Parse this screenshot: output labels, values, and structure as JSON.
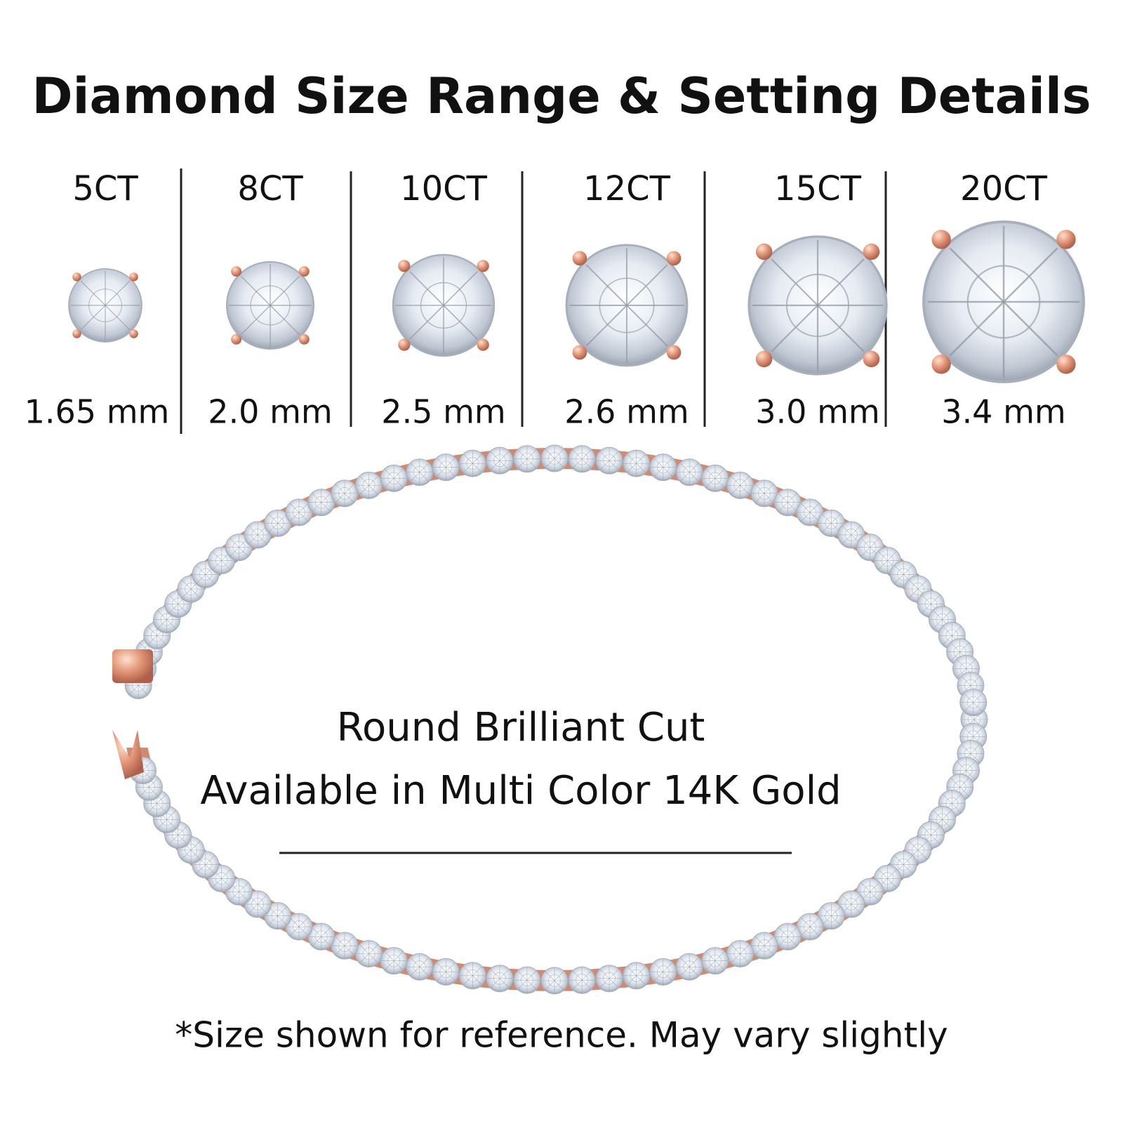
{
  "header": {
    "title": "Diamond Size Range & Setting Details"
  },
  "sizes": [
    {
      "carat": "5CT",
      "mm": "1.65 mm"
    },
    {
      "carat": "8CT",
      "mm": "2.0 mm"
    },
    {
      "carat": "10CT",
      "mm": "2.5 mm"
    },
    {
      "carat": "12CT",
      "mm": "2.6 mm"
    },
    {
      "carat": "15CT",
      "mm": "3.0 mm"
    },
    {
      "carat": "20CT",
      "mm": "3.4 mm"
    }
  ],
  "description": {
    "line1": "Round Brilliant Cut",
    "line2": "Available in Multi Color 14K Gold"
  },
  "footnote": "*Size shown for reference. May vary slightly"
}
